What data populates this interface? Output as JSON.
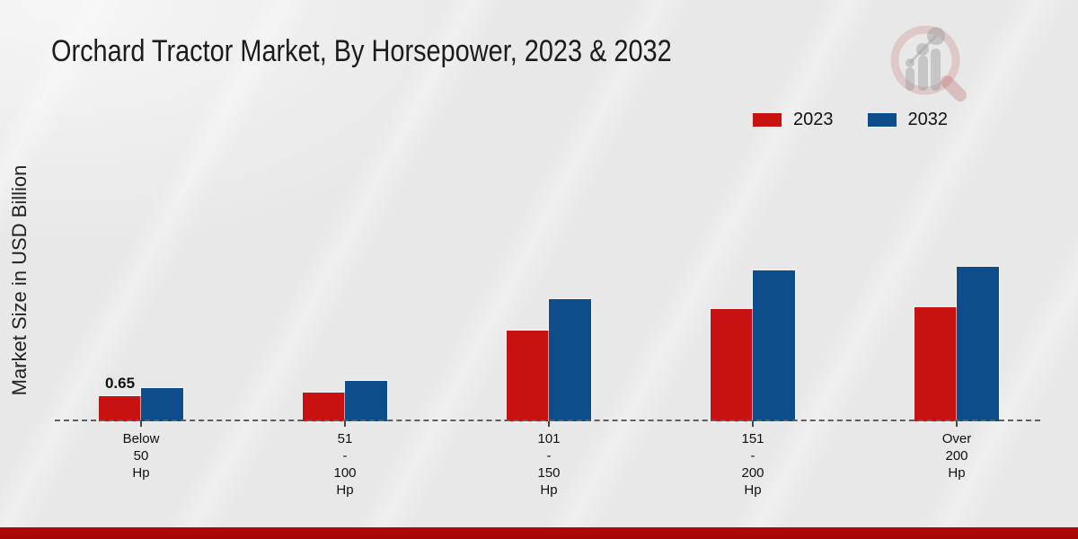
{
  "title": "Orchard Tractor Market, By Horsepower, 2023 & 2032",
  "ylabel": "Market Size in USD Billion",
  "legend": [
    {
      "label": "2023",
      "color": "#c81111"
    },
    {
      "label": "2032",
      "color": "#0d4d8a"
    }
  ],
  "colors": {
    "red": "#c81111",
    "blue": "#0d4d8a",
    "background": "#e8e8e8",
    "baseline": "#5f5f5f",
    "bottom_strip": "#b40707",
    "text": "#111111"
  },
  "watermark": "magnifier-bar-chart-logo",
  "chart_data": {
    "type": "bar",
    "title": "Orchard Tractor Market, By Horsepower, 2023 & 2032",
    "xlabel": "",
    "ylabel": "Market Size in USD Billion",
    "categories": [
      "Below 50 Hp",
      "51 - 100 Hp",
      "101 - 150 Hp",
      "151 - 200 Hp",
      "Over 200 Hp"
    ],
    "category_label_lines": [
      [
        "Below",
        "50",
        "Hp"
      ],
      [
        "51",
        "-",
        "100",
        "Hp"
      ],
      [
        "101",
        "-",
        "150",
        "Hp"
      ],
      [
        "151",
        "-",
        "200",
        "Hp"
      ],
      [
        "Over",
        "200",
        "Hp"
      ]
    ],
    "series": [
      {
        "name": "2023",
        "color": "#c81111",
        "values": [
          0.65,
          0.75,
          2.35,
          2.9,
          2.95
        ]
      },
      {
        "name": "2032",
        "color": "#0d4d8a",
        "values": [
          0.85,
          1.05,
          3.15,
          3.9,
          4.0
        ]
      }
    ],
    "bar_labels": [
      {
        "series_index": 0,
        "category_index": 0,
        "text": "0.65"
      }
    ],
    "ylim": [
      0,
      4.6
    ],
    "grid": false,
    "baseline_style": "dashed",
    "legend_position": "top-right"
  }
}
